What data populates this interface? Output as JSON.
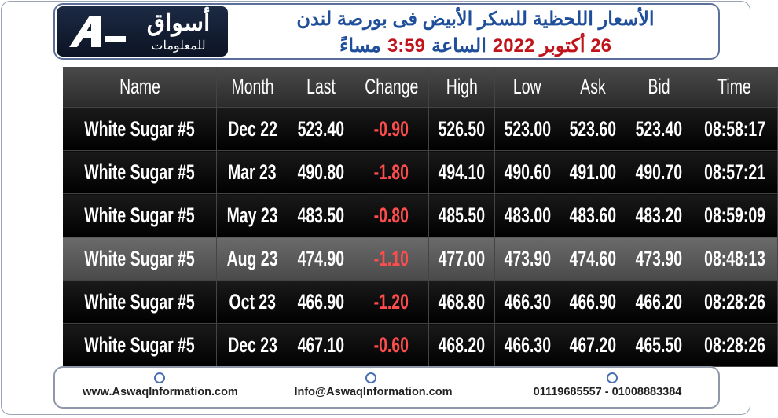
{
  "header": {
    "logo_main": "أسواق",
    "logo_sub": "للمعلومات",
    "title": "الأسعار اللحظية للسكر الأبيض فى بورصة لندن",
    "subtitle": [
      {
        "text": "26 أكتوبر 2022",
        "color": "#c0141c"
      },
      {
        "text": "الساعة",
        "color": "#1f4e9a"
      },
      {
        "text": "3:59",
        "color": "#c0141c"
      },
      {
        "text": "مساءً",
        "color": "#1f4e9a"
      }
    ]
  },
  "table": {
    "columns": [
      "Name",
      "Month",
      "Last",
      "Change",
      "High",
      "Low",
      "Ask",
      "Bid",
      "Time"
    ],
    "rows": [
      [
        "White Sugar #5",
        "Dec 22",
        "523.40",
        "-0.90",
        "526.50",
        "523.00",
        "523.60",
        "523.40",
        "08:58:17"
      ],
      [
        "White Sugar #5",
        "Mar 23",
        "490.80",
        "-1.80",
        "494.10",
        "490.60",
        "491.00",
        "490.70",
        "08:57:21"
      ],
      [
        "White Sugar #5",
        "May 23",
        "483.50",
        "-0.80",
        "485.50",
        "483.00",
        "483.60",
        "483.20",
        "08:59:09"
      ],
      [
        "White Sugar #5",
        "Aug 23",
        "474.90",
        "-1.10",
        "477.00",
        "473.90",
        "474.60",
        "473.90",
        "08:48:13"
      ],
      [
        "White Sugar #5",
        "Oct 23",
        "466.90",
        "-1.20",
        "468.80",
        "466.30",
        "466.90",
        "466.20",
        "08:28:26"
      ],
      [
        "White Sugar #5",
        "Dec 23",
        "467.10",
        "-0.60",
        "468.20",
        "466.30",
        "467.20",
        "465.50",
        "08:28:26"
      ]
    ]
  },
  "footer": {
    "website": "www.AswaqInformation.com",
    "email": "Info@AswaqInformation.com",
    "phones": "01119685557 - 01008883384"
  }
}
